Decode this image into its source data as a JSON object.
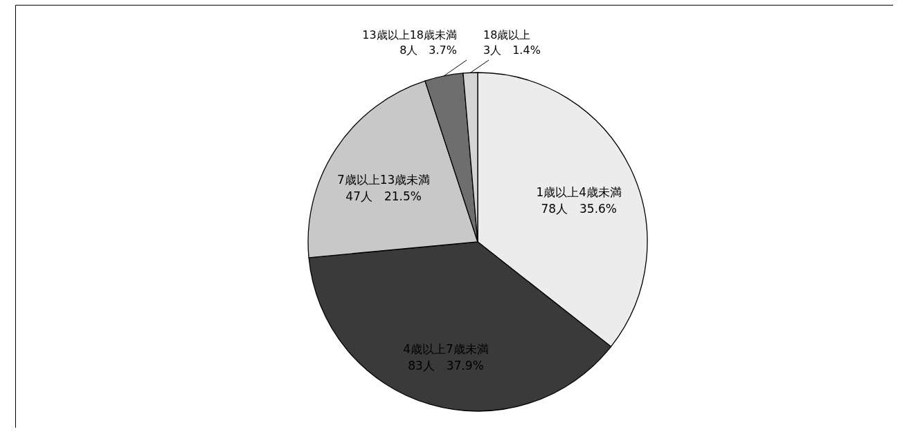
{
  "chart_data": {
    "type": "pie",
    "categories": [
      "1歳以上4歳未満",
      "4歳以上7歳未満",
      "7歳以上13歳未満",
      "13歳以上18歳未満",
      "18歳以上"
    ],
    "values": [
      78,
      83,
      47,
      8,
      3
    ],
    "value_labels": [
      "78人　35.6%",
      "83人　37.9%",
      "47人　21.5%",
      "8人　3.7%",
      "3人　1.4%"
    ],
    "colors": [
      "#ececec",
      "#3a3a3a",
      "#c8c8c8",
      "#6e6e6e",
      "#d4d4d4"
    ]
  }
}
